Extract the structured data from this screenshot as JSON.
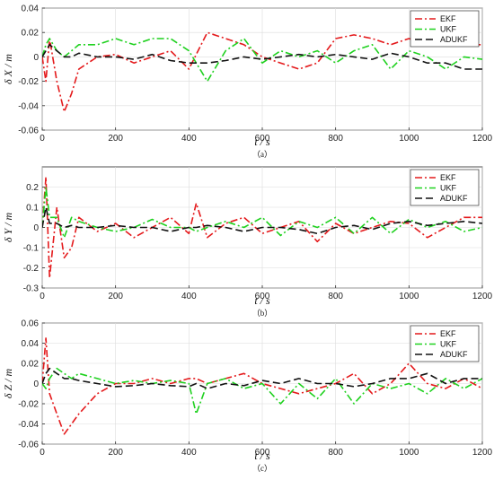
{
  "chart_data": [
    {
      "type": "line",
      "title": "",
      "subfigure_label": "（a）",
      "xlabel": "t / s",
      "ylabel": "δ X / m",
      "xlim": [
        0,
        1200
      ],
      "ylim": [
        -0.06,
        0.04
      ],
      "xticks": [
        0,
        200,
        400,
        600,
        800,
        1000,
        1200
      ],
      "yticks": [
        -0.06,
        -0.04,
        -0.02,
        0,
        0.02,
        0.04
      ],
      "ytick_labels": [
        "-0.06",
        "-0.04",
        "-0.02",
        "0",
        "0.02",
        "0.04"
      ],
      "legend_position": "top-right",
      "grid": true,
      "x": [
        0,
        10,
        20,
        40,
        60,
        80,
        100,
        150,
        200,
        250,
        300,
        350,
        400,
        450,
        500,
        550,
        600,
        650,
        700,
        750,
        800,
        850,
        900,
        950,
        1000,
        1050,
        1100,
        1150,
        1200
      ],
      "series": [
        {
          "name": "EKF",
          "color": "#e41a1c",
          "dash": "8,3,2,3",
          "values": [
            0,
            -0.02,
            0.015,
            -0.02,
            -0.045,
            -0.03,
            -0.01,
            0.0,
            0.002,
            -0.005,
            0.0,
            0.005,
            -0.01,
            0.02,
            0.015,
            0.01,
            0.0,
            -0.005,
            -0.01,
            -0.005,
            0.015,
            0.018,
            0.015,
            0.01,
            0.015,
            0.01,
            0.015,
            0.01,
            0.01
          ]
        },
        {
          "name": "UKF",
          "color": "#1fd11f",
          "dash": "8,3,2,3",
          "values": [
            0,
            0.01,
            0.015,
            0.005,
            0.0,
            0.005,
            0.01,
            0.01,
            0.015,
            0.01,
            0.015,
            0.015,
            0.005,
            -0.02,
            0.005,
            0.015,
            -0.005,
            0.005,
            0.0,
            0.005,
            -0.005,
            0.005,
            0.01,
            -0.01,
            0.005,
            0.0,
            -0.01,
            0.0,
            -0.002
          ]
        },
        {
          "name": "ADUKF",
          "color": "#111111",
          "dash": "8,4",
          "values": [
            0,
            0.005,
            0.01,
            0.005,
            0.0,
            0.0,
            0.003,
            0.0,
            0.0,
            -0.002,
            0.002,
            -0.003,
            -0.005,
            -0.005,
            -0.003,
            0.0,
            -0.002,
            0.0,
            0.002,
            0.0,
            0.002,
            0.0,
            -0.002,
            0.003,
            0.0,
            -0.005,
            -0.005,
            -0.01,
            -0.01
          ]
        }
      ]
    },
    {
      "type": "line",
      "title": "",
      "subfigure_label": "（b）",
      "xlabel": "t / s",
      "ylabel": "δ Y / m",
      "xlim": [
        0,
        1200
      ],
      "ylim": [
        -0.3,
        0.3
      ],
      "xticks": [
        0,
        200,
        400,
        600,
        800,
        1000,
        1200
      ],
      "yticks": [
        -0.3,
        -0.2,
        -0.1,
        0,
        0.1,
        0.2
      ],
      "ytick_labels": [
        "-0.3",
        "-0.2",
        "-0.1",
        "0",
        "0.1",
        "0.2"
      ],
      "legend_position": "top-right",
      "grid": true,
      "x": [
        0,
        10,
        20,
        40,
        60,
        80,
        100,
        150,
        200,
        250,
        300,
        350,
        400,
        420,
        450,
        500,
        550,
        600,
        650,
        700,
        750,
        800,
        850,
        900,
        950,
        1000,
        1050,
        1100,
        1150,
        1200
      ],
      "series": [
        {
          "name": "EKF",
          "color": "#e41a1c",
          "dash": "8,3,2,3",
          "values": [
            0,
            0.25,
            -0.25,
            0.1,
            -0.15,
            -0.1,
            0.05,
            -0.02,
            0.02,
            -0.05,
            0.0,
            0.05,
            -0.03,
            0.12,
            -0.05,
            0.02,
            0.05,
            -0.03,
            0.0,
            0.03,
            -0.07,
            0.02,
            -0.03,
            0.0,
            0.03,
            0.02,
            -0.05,
            0.0,
            0.05,
            0.05
          ]
        },
        {
          "name": "UKF",
          "color": "#1fd11f",
          "dash": "8,3,2,3",
          "values": [
            0,
            0.2,
            0.05,
            0.05,
            -0.05,
            0.05,
            0.03,
            0.0,
            -0.02,
            0.0,
            0.04,
            0.0,
            0.0,
            -0.02,
            0.0,
            0.03,
            0.0,
            0.05,
            -0.04,
            0.03,
            0.0,
            0.05,
            -0.03,
            0.05,
            -0.03,
            0.04,
            0.0,
            0.03,
            -0.02,
            0.0
          ]
        },
        {
          "name": "ADUKF",
          "color": "#111111",
          "dash": "8,4",
          "values": [
            0,
            0.1,
            0.02,
            0.02,
            0.0,
            0.01,
            0.0,
            0.0,
            0.01,
            0.0,
            0.0,
            -0.02,
            0.0,
            0.0,
            0.01,
            0.0,
            -0.02,
            0.0,
            0.0,
            -0.01,
            -0.03,
            0.0,
            0.01,
            -0.01,
            0.02,
            0.03,
            0.01,
            0.02,
            0.03,
            0.02
          ]
        }
      ]
    },
    {
      "type": "line",
      "title": "",
      "subfigure_label": "（c）",
      "xlabel": "t / s",
      "ylabel": "δ Z / m",
      "xlim": [
        0,
        1200
      ],
      "ylim": [
        -0.06,
        0.06
      ],
      "xticks": [
        0,
        200,
        400,
        600,
        800,
        1000,
        1200
      ],
      "yticks": [
        -0.06,
        -0.04,
        -0.02,
        0,
        0.02,
        0.04,
        0.06
      ],
      "ytick_labels": [
        "-0.06",
        "-0.04",
        "-0.02",
        "0",
        "0.02",
        "0.04",
        "0.06"
      ],
      "legend_position": "top-right",
      "grid": true,
      "x": [
        0,
        10,
        20,
        40,
        60,
        80,
        100,
        150,
        200,
        250,
        300,
        350,
        400,
        420,
        450,
        500,
        550,
        600,
        650,
        700,
        750,
        800,
        850,
        900,
        950,
        1000,
        1050,
        1100,
        1150,
        1200
      ],
      "series": [
        {
          "name": "EKF",
          "color": "#e41a1c",
          "dash": "8,3,2,3",
          "values": [
            0,
            0.045,
            -0.01,
            -0.03,
            -0.05,
            -0.04,
            -0.03,
            -0.01,
            0.0,
            0.0,
            0.005,
            0.0,
            0.005,
            0.005,
            0.0,
            0.005,
            0.01,
            0.0,
            -0.005,
            -0.01,
            -0.005,
            0.0,
            0.01,
            -0.01,
            0.0,
            0.02,
            0.0,
            -0.005,
            0.005,
            -0.005
          ]
        },
        {
          "name": "UKF",
          "color": "#1fd11f",
          "dash": "8,3,2,3",
          "values": [
            0,
            -0.005,
            0.005,
            0.015,
            0.01,
            0.005,
            0.01,
            0.005,
            0.0,
            0.003,
            0.0,
            0.003,
            0.0,
            -0.03,
            0.0,
            0.005,
            -0.005,
            0.0,
            -0.02,
            0.0,
            -0.015,
            0.005,
            -0.02,
            0.0,
            -0.005,
            0.0,
            -0.01,
            0.005,
            -0.005,
            0.005
          ]
        },
        {
          "name": "ADUKF",
          "color": "#111111",
          "dash": "8,4",
          "values": [
            0,
            0.01,
            0.015,
            0.01,
            0.005,
            0.005,
            0.003,
            0.0,
            -0.003,
            -0.002,
            0.0,
            -0.002,
            -0.003,
            0.0,
            -0.005,
            0.0,
            -0.002,
            0.003,
            0.0,
            0.005,
            0.0,
            0.0,
            -0.003,
            0.0,
            0.005,
            0.005,
            0.01,
            0.0,
            0.005,
            0.005
          ]
        }
      ]
    }
  ]
}
